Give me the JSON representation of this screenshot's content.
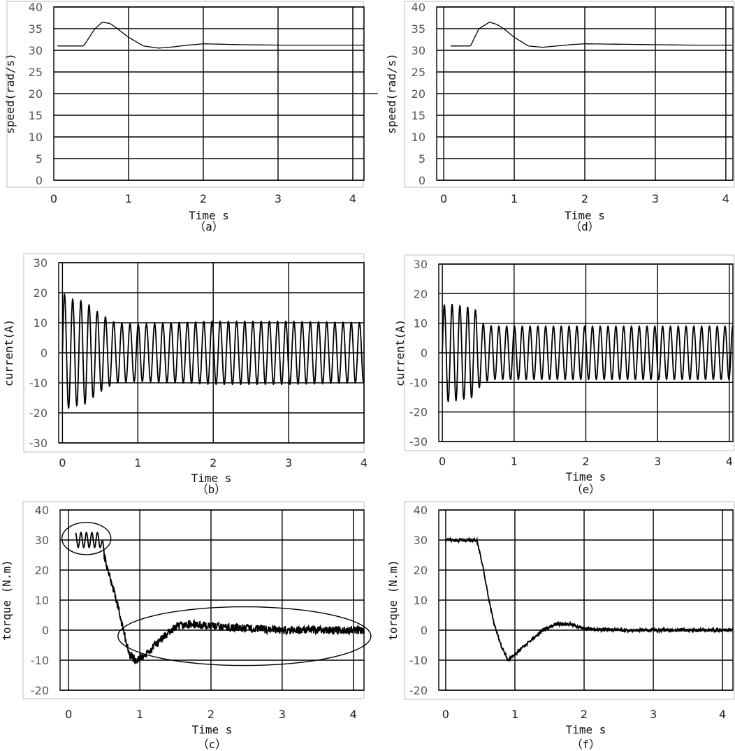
{
  "chart_data": [
    {
      "id": "a",
      "type": "line",
      "caption": "（a）",
      "ylabel": "speed(rad/s)",
      "xlabel": "Time s",
      "ylim": [
        0,
        40
      ],
      "yticks": [
        0,
        5,
        10,
        15,
        20,
        25,
        30,
        35,
        40
      ],
      "xlim": [
        0,
        4.15
      ],
      "xticks": [
        0,
        1,
        2,
        3,
        4
      ],
      "grid": true,
      "legend": "none",
      "series": [
        {
          "x": [
            0.05,
            0.2,
            0.4,
            0.55,
            0.65,
            0.75,
            0.85,
            1.0,
            1.2,
            1.4,
            1.6,
            1.8,
            2.0,
            2.5,
            3.0,
            3.5,
            4.15
          ],
          "y": [
            31,
            31,
            31,
            35,
            36.5,
            36.2,
            35,
            33,
            31,
            30.5,
            30.8,
            31.2,
            31.5,
            31.3,
            31.2,
            31.2,
            31.2
          ]
        }
      ],
      "annotations": []
    },
    {
      "id": "b",
      "type": "line",
      "caption": "（b）",
      "ylabel": "current(A)",
      "xlabel": "Time s",
      "ylim": [
        -30,
        30
      ],
      "yticks": [
        -30,
        -20,
        -10,
        0,
        10,
        20,
        30
      ],
      "xlim": [
        -0.05,
        4.0
      ],
      "xticks": [
        0,
        1,
        2,
        3,
        4
      ],
      "grid": true,
      "legend": "none",
      "waveform": {
        "kind": "oscillation",
        "x_start": 0,
        "x_end": 4.0,
        "frequency": 9.2,
        "envelope": {
          "x": [
            0,
            0.1,
            0.3,
            0.5,
            0.7,
            1.0,
            1.5,
            2.0,
            3.0,
            4.0
          ],
          "y": [
            20,
            18,
            17,
            13,
            10,
            9.5,
            10,
            10.5,
            10.5,
            10
          ]
        }
      },
      "annotations": []
    },
    {
      "id": "c",
      "type": "line",
      "caption": "（c）",
      "ylabel": "torque (N.m)",
      "xlabel": "Time s",
      "ylim": [
        -20,
        40
      ],
      "yticks": [
        -20,
        -10,
        0,
        10,
        20,
        30,
        40
      ],
      "xlim": [
        -0.12,
        4.15
      ],
      "xticks": [
        0,
        1,
        2,
        3,
        4
      ],
      "grid": true,
      "legend": "none",
      "series": [
        {
          "x": [
            0.1,
            0.45,
            0.55,
            0.65,
            0.75,
            0.85,
            0.95,
            1.1,
            1.3,
            1.5,
            1.7,
            1.9,
            2.2,
            2.6,
            3.0,
            3.5,
            4.15
          ],
          "y": [
            30,
            30,
            20,
            12,
            2,
            -8,
            -10,
            -8,
            -3,
            1,
            2,
            1.5,
            1,
            0.5,
            0,
            0,
            0
          ],
          "ripple": 2.5
        }
      ],
      "annotations": [
        "ellipse-top-left",
        "ellipse-center"
      ]
    },
    {
      "id": "d",
      "type": "line",
      "caption": "（d）",
      "ylabel": "speed(rad/s)",
      "xlabel": "Time s",
      "ylim": [
        0,
        40
      ],
      "yticks": [
        0,
        5,
        10,
        15,
        20,
        25,
        30,
        35,
        40
      ],
      "xlim": [
        -0.1,
        4.1
      ],
      "xticks": [
        0,
        1,
        2,
        3,
        4
      ],
      "grid": true,
      "legend": "none",
      "series": [
        {
          "x": [
            0.1,
            0.2,
            0.38,
            0.5,
            0.65,
            0.75,
            0.85,
            1.0,
            1.2,
            1.4,
            1.6,
            1.8,
            2.0,
            2.5,
            3.0,
            3.5,
            4.1
          ],
          "y": [
            31,
            31,
            31,
            35,
            36.5,
            36,
            35,
            33,
            31,
            30.7,
            31,
            31.3,
            31.5,
            31.4,
            31.3,
            31.2,
            31.2
          ]
        }
      ],
      "annotations": []
    },
    {
      "id": "e",
      "type": "line",
      "caption": "（e）",
      "ylabel": "current(A)",
      "xlabel": "Time s",
      "ylim": [
        -30,
        30
      ],
      "yticks": [
        -30,
        -20,
        -10,
        0,
        10,
        20,
        30
      ],
      "xlim": [
        -0.05,
        4.05
      ],
      "xticks": [
        0,
        1,
        2,
        3,
        4
      ],
      "grid": true,
      "legend": "none",
      "waveform": {
        "kind": "oscillation",
        "x_start": 0,
        "x_end": 4.05,
        "frequency": 9.2,
        "envelope": {
          "x": [
            0,
            0.1,
            0.45,
            0.55,
            0.7,
            1.0,
            2.0,
            3.0,
            4.05
          ],
          "y": [
            16,
            16.5,
            15,
            10,
            9,
            9,
            9,
            9,
            9
          ]
        }
      },
      "annotations": []
    },
    {
      "id": "f",
      "type": "line",
      "caption": "（f）",
      "ylabel": "torque (N.m)",
      "xlabel": "Time s",
      "ylim": [
        -20,
        40
      ],
      "yticks": [
        -20,
        -10,
        0,
        10,
        20,
        30,
        40
      ],
      "xlim": [
        -0.1,
        4.15
      ],
      "xticks": [
        0,
        1,
        2,
        3,
        4
      ],
      "grid": true,
      "legend": "none",
      "series": [
        {
          "x": [
            0,
            0.45,
            0.55,
            0.6,
            0.7,
            0.8,
            0.9,
            1.0,
            1.2,
            1.4,
            1.6,
            1.8,
            2.0,
            2.5,
            3.0,
            3.5,
            4.15
          ],
          "y": [
            30,
            30,
            20,
            13,
            2,
            -5,
            -10,
            -8,
            -4,
            0,
            2,
            2,
            0.5,
            0,
            0,
            0,
            0
          ],
          "ripple": 1.0
        }
      ],
      "annotations": []
    }
  ]
}
